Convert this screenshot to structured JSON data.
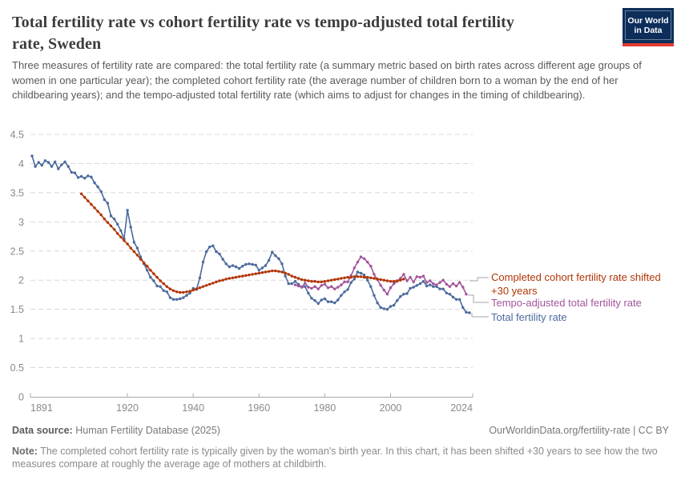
{
  "header": {
    "title_lines": [
      "Total fertility rate vs cohort fertility rate vs tempo-adjusted total fertility",
      "rate, Sweden"
    ],
    "subtitle": "Three measures of fertility rate are compared: the total fertility rate (a summary metric based on birth rates across different age groups of women in one particular year); the completed cohort fertility rate (the average number of children born to a woman by the end of her childbearing years); and the tempo-adjusted total fertility rate (which aims to adjust for changes in the timing of childbearing).",
    "logo_lines": [
      "Our World",
      "in Data"
    ]
  },
  "legend": {
    "cohort_lines": [
      "Completed cohort fertility rate shifted",
      "+30 years"
    ],
    "tempo_label": "Tempo-adjusted total fertility rate",
    "tfr_label": "Total fertility rate"
  },
  "footer": {
    "source_label": "Data source:",
    "source_value": "Human Fertility Database (2025)",
    "attribution": "OurWorldinData.org/fertility-rate | CC BY",
    "note_label": "Note:",
    "note_text": "The completed cohort fertility rate is typically given by the woman's birth year. In this chart, it has been shifted +30 years to see how the two measures compare at roughly the average age of mothers at childbirth."
  },
  "colors": {
    "tfr_blue": "#4C6A9C",
    "cohort_red": "#B13507",
    "tempo_purple": "#A2559C",
    "grid_gray": "#d8d8d8",
    "axis_gray": "#a9a9a9",
    "tick_label_gray": "#8a8a8a"
  },
  "chart_data": {
    "type": "line",
    "title": "Total fertility rate vs cohort fertility rate vs tempo-adjusted total fertility rate, Sweden",
    "xlabel": "",
    "ylabel": "",
    "xlim": [
      1891,
      2024
    ],
    "ylim": [
      0,
      4.5
    ],
    "x_ticks": [
      1891,
      1920,
      1940,
      1960,
      1980,
      2000,
      2024
    ],
    "y_ticks": [
      0,
      0.5,
      1,
      1.5,
      2,
      2.5,
      3,
      3.5,
      4,
      4.5
    ],
    "grid": "dashed-horizontal",
    "legend_position": "right",
    "x_step_years": 1,
    "series": [
      {
        "name": "Total fertility rate",
        "slug": "total-fertility-rate",
        "color": "#4C6A9C",
        "start_year": 1891,
        "end_year": 2024,
        "values": [
          4.13,
          3.95,
          4.02,
          3.97,
          4.05,
          4.02,
          3.95,
          4.03,
          3.91,
          3.98,
          4.03,
          3.95,
          3.85,
          3.84,
          3.76,
          3.78,
          3.75,
          3.79,
          3.77,
          3.67,
          3.6,
          3.52,
          3.38,
          3.32,
          3.1,
          3.05,
          2.96,
          2.85,
          2.71,
          3.2,
          2.91,
          2.65,
          2.55,
          2.4,
          2.28,
          2.17,
          2.05,
          1.99,
          1.9,
          1.89,
          1.82,
          1.8,
          1.7,
          1.67,
          1.67,
          1.68,
          1.7,
          1.74,
          1.78,
          1.86,
          1.84,
          2.04,
          2.31,
          2.49,
          2.57,
          2.59,
          2.49,
          2.45,
          2.36,
          2.28,
          2.23,
          2.25,
          2.23,
          2.2,
          2.24,
          2.27,
          2.28,
          2.27,
          2.26,
          2.17,
          2.21,
          2.25,
          2.34,
          2.48,
          2.42,
          2.37,
          2.28,
          2.07,
          1.94,
          1.94,
          1.98,
          1.93,
          1.88,
          1.89,
          1.78,
          1.69,
          1.65,
          1.6,
          1.66,
          1.68,
          1.63,
          1.63,
          1.61,
          1.66,
          1.74,
          1.8,
          1.84,
          1.96,
          2.02,
          2.14,
          2.12,
          2.09,
          2.0,
          1.89,
          1.74,
          1.61,
          1.53,
          1.51,
          1.5,
          1.55,
          1.57,
          1.65,
          1.72,
          1.76,
          1.77,
          1.86,
          1.88,
          1.91,
          1.94,
          1.98,
          1.9,
          1.92,
          1.89,
          1.89,
          1.85,
          1.85,
          1.78,
          1.76,
          1.71,
          1.67,
          1.67,
          1.53,
          1.45,
          1.44
        ]
      },
      {
        "name": "Tempo-adjusted total fertility rate",
        "slug": "tempo-adjusted-total-fertility-rate",
        "color": "#A2559C",
        "start_year": 1971,
        "end_year": 2023,
        "values": [
          1.92,
          1.9,
          1.88,
          1.95,
          1.88,
          1.86,
          1.89,
          1.85,
          1.91,
          1.93,
          1.87,
          1.89,
          1.85,
          1.88,
          1.92,
          1.97,
          1.97,
          2.08,
          2.21,
          2.31,
          2.4,
          2.37,
          2.31,
          2.24,
          2.1,
          2.01,
          1.91,
          1.83,
          1.76,
          1.87,
          1.94,
          1.98,
          2.03,
          2.1,
          1.99,
          2.05,
          1.97,
          2.06,
          2.05,
          2.07,
          1.96,
          1.99,
          1.94,
          1.92,
          1.96,
          2.0,
          1.93,
          1.89,
          1.94,
          1.9,
          1.96,
          1.88,
          1.76
        ]
      },
      {
        "name": "Completed cohort fertility rate shifted +30 years",
        "slug": "completed-cohort-fertility-rate-shifted-30-years",
        "color": "#B13507",
        "start_year": 1906,
        "end_year": 2004,
        "values": [
          3.48,
          3.42,
          3.36,
          3.3,
          3.24,
          3.18,
          3.12,
          3.05,
          2.99,
          2.93,
          2.87,
          2.8,
          2.74,
          2.68,
          2.62,
          2.55,
          2.49,
          2.43,
          2.36,
          2.3,
          2.24,
          2.17,
          2.11,
          2.05,
          1.99,
          1.94,
          1.89,
          1.85,
          1.82,
          1.8,
          1.79,
          1.79,
          1.8,
          1.81,
          1.83,
          1.85,
          1.87,
          1.89,
          1.91,
          1.93,
          1.95,
          1.97,
          1.99,
          2.0,
          2.02,
          2.03,
          2.04,
          2.05,
          2.06,
          2.07,
          2.08,
          2.09,
          2.1,
          2.11,
          2.12,
          2.13,
          2.14,
          2.15,
          2.16,
          2.16,
          2.15,
          2.14,
          2.12,
          2.1,
          2.07,
          2.05,
          2.03,
          2.01,
          2.0,
          1.99,
          1.98,
          1.98,
          1.97,
          1.97,
          1.98,
          1.99,
          2.0,
          2.01,
          2.02,
          2.03,
          2.04,
          2.05,
          2.05,
          2.06,
          2.06,
          2.06,
          2.05,
          2.05,
          2.04,
          2.03,
          2.02,
          2.01,
          2.0,
          1.99,
          1.98,
          1.98,
          1.99,
          2.0,
          2.02
        ]
      }
    ]
  }
}
